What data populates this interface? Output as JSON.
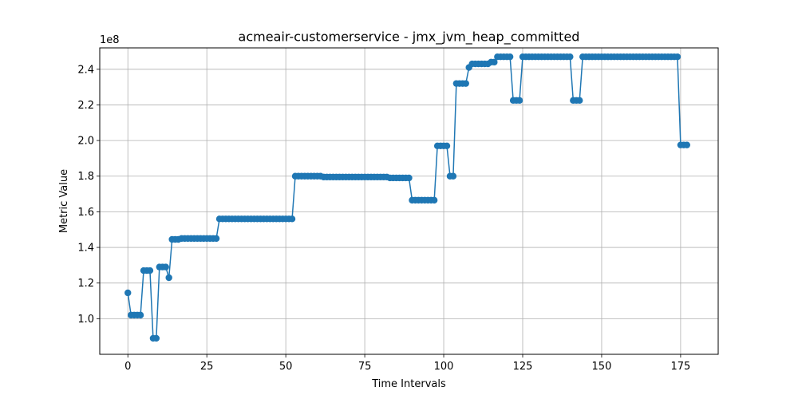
{
  "chart_data": {
    "type": "line",
    "title": "acmeair-customerservice - jmx_jvm_heap_committed",
    "xlabel": "Time Intervals",
    "ylabel": "Metric Value",
    "y_offset_label": "1e8",
    "xlim": [
      -8.9,
      186.9
    ],
    "ylim": [
      0.8,
      2.52
    ],
    "y_multiplier": 100000000,
    "x_ticks": [
      0,
      25,
      50,
      75,
      100,
      125,
      150,
      175
    ],
    "y_ticks": [
      1.0,
      1.2,
      1.4,
      1.6,
      1.8,
      2.0,
      2.2,
      2.4
    ],
    "y_tick_labels": [
      "1.0",
      "1.2",
      "1.4",
      "1.6",
      "1.8",
      "2.0",
      "2.2",
      "2.4"
    ],
    "grid": true,
    "series_color": "#1f77b4",
    "series": [
      {
        "x_start": 0,
        "values": [
          1.145,
          1.02,
          1.02,
          1.02,
          1.02,
          1.27,
          1.27,
          1.27,
          0.89,
          0.89,
          1.29,
          1.29,
          1.29,
          1.23,
          1.445,
          1.445,
          1.445,
          1.45,
          1.45,
          1.45,
          1.45,
          1.45,
          1.45,
          1.45,
          1.45,
          1.45,
          1.45,
          1.45,
          1.45,
          1.56,
          1.56,
          1.56,
          1.56,
          1.56,
          1.56,
          1.56,
          1.56,
          1.56,
          1.56,
          1.56,
          1.56,
          1.56,
          1.56,
          1.56,
          1.56,
          1.56,
          1.56,
          1.56,
          1.56,
          1.56,
          1.56,
          1.56,
          1.56,
          1.8,
          1.8,
          1.8,
          1.8,
          1.8,
          1.8,
          1.8,
          1.8,
          1.8,
          1.795,
          1.795,
          1.795,
          1.795,
          1.795,
          1.795,
          1.795,
          1.795,
          1.795,
          1.795,
          1.795,
          1.795,
          1.795,
          1.795,
          1.795,
          1.795,
          1.795,
          1.795,
          1.795,
          1.795,
          1.795,
          1.79,
          1.79,
          1.79,
          1.79,
          1.79,
          1.79,
          1.79,
          1.665,
          1.665,
          1.665,
          1.665,
          1.665,
          1.665,
          1.665,
          1.665,
          1.97,
          1.97,
          1.97,
          1.97,
          1.8,
          1.8,
          2.32,
          2.32,
          2.32,
          2.32,
          2.41,
          2.43,
          2.43,
          2.43,
          2.43,
          2.43,
          2.43,
          2.44,
          2.44,
          2.47,
          2.47,
          2.47,
          2.47,
          2.47,
          2.225,
          2.225,
          2.225,
          2.47,
          2.47,
          2.47,
          2.47,
          2.47,
          2.47,
          2.47,
          2.47,
          2.47,
          2.47,
          2.47,
          2.47,
          2.47,
          2.47,
          2.47,
          2.47,
          2.225,
          2.225,
          2.225,
          2.47,
          2.47,
          2.47,
          2.47,
          2.47,
          2.47,
          2.47,
          2.47,
          2.47,
          2.47,
          2.47,
          2.47,
          2.47,
          2.47,
          2.47,
          2.47,
          2.47,
          2.47,
          2.47,
          2.47,
          2.47,
          2.47,
          2.47,
          2.47,
          2.47,
          2.47,
          2.47,
          2.47,
          2.47,
          2.47,
          2.47,
          1.975,
          1.975,
          1.975
        ]
      }
    ]
  }
}
